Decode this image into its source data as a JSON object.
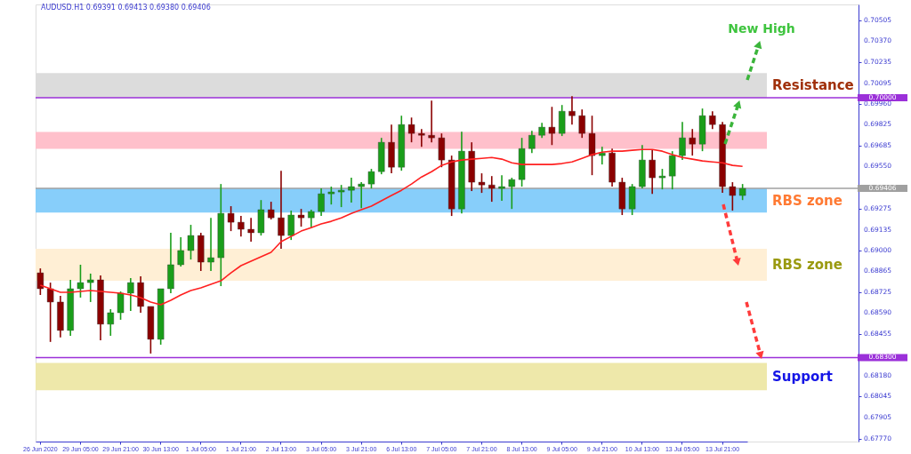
{
  "chart_data": {
    "type": "candlestick",
    "title": "AUDUSD.H1  0.69391 0.69413 0.69380 0.69406",
    "annotations": [
      "New High"
    ],
    "categories": [
      "26 Jun 2020",
      null,
      null,
      null,
      "29 Jun 05:00",
      null,
      null,
      null,
      "29 Jun 21:00",
      null,
      null,
      null,
      "30 Jun 13:00",
      null,
      null,
      null,
      "1 Jul 05:00",
      null,
      null,
      null,
      "1 Jul 21:00",
      null,
      null,
      null,
      "2 Jul 13:00",
      null,
      null,
      null,
      "3 Jul 05:00",
      null,
      null,
      null,
      "3 Jul 21:00",
      null,
      null,
      null,
      "6 Jul 13:00",
      null,
      null,
      null,
      "7 Jul 05:00",
      null,
      null,
      null,
      "7 Jul 21:00",
      null,
      null,
      null,
      "8 Jul 13:00",
      null,
      null,
      null,
      "9 Jul 05:00",
      null,
      null,
      null,
      "9 Jul 21:00",
      null,
      null,
      null,
      "10 Jul 13:00",
      null,
      null,
      null,
      "13 Jul 05:00",
      null,
      null,
      null,
      "13 Jul 21:00",
      null,
      null
    ],
    "ohlc": [
      [
        0.68854,
        0.68883,
        0.68709,
        0.6875
      ],
      [
        0.6875,
        0.6879,
        0.68402,
        0.68663
      ],
      [
        0.68663,
        0.68703,
        0.68431,
        0.68477
      ],
      [
        0.68477,
        0.68808,
        0.68442,
        0.6875
      ],
      [
        0.6875,
        0.68907,
        0.68692,
        0.6879
      ],
      [
        0.6879,
        0.68849,
        0.68663,
        0.68808
      ],
      [
        0.68808,
        0.68837,
        0.68413,
        0.68518
      ],
      [
        0.68518,
        0.68616,
        0.68442,
        0.68593
      ],
      [
        0.68593,
        0.68732,
        0.68547,
        0.68721
      ],
      [
        0.68721,
        0.6882,
        0.68605,
        0.6879
      ],
      [
        0.6879,
        0.68831,
        0.68593,
        0.68634
      ],
      [
        0.68634,
        0.68634,
        0.68326,
        0.68419
      ],
      [
        0.68419,
        0.6875,
        0.68384,
        0.6875
      ],
      [
        0.6875,
        0.69116,
        0.68721,
        0.68907
      ],
      [
        0.68907,
        0.69087,
        0.68895,
        0.69
      ],
      [
        0.69,
        0.69168,
        0.68941,
        0.69098
      ],
      [
        0.69098,
        0.69116,
        0.68866,
        0.68924
      ],
      [
        0.68924,
        0.69214,
        0.68866,
        0.68953
      ],
      [
        0.68953,
        0.69435,
        0.68767,
        0.69243
      ],
      [
        0.69243,
        0.6929,
        0.69127,
        0.69185
      ],
      [
        0.69185,
        0.69226,
        0.69092,
        0.69139
      ],
      [
        0.69139,
        0.69214,
        0.69058,
        0.69116
      ],
      [
        0.69116,
        0.6933,
        0.69098,
        0.69267
      ],
      [
        0.69267,
        0.69319,
        0.69203,
        0.69214
      ],
      [
        0.69214,
        0.69522,
        0.69011,
        0.69098
      ],
      [
        0.69098,
        0.69261,
        0.69069,
        0.69232
      ],
      [
        0.69232,
        0.69272,
        0.69156,
        0.69214
      ],
      [
        0.69214,
        0.69267,
        0.6915,
        0.69255
      ],
      [
        0.69255,
        0.69406,
        0.69226,
        0.69371
      ],
      [
        0.69371,
        0.69418,
        0.69301,
        0.69383
      ],
      [
        0.69383,
        0.69429,
        0.69284,
        0.69394
      ],
      [
        0.69394,
        0.69476,
        0.69313,
        0.69418
      ],
      [
        0.69418,
        0.69447,
        0.69278,
        0.69435
      ],
      [
        0.69435,
        0.69534,
        0.69406,
        0.69516
      ],
      [
        0.69516,
        0.69737,
        0.69499,
        0.69708
      ],
      [
        0.69708,
        0.69824,
        0.69505,
        0.69545
      ],
      [
        0.69545,
        0.69882,
        0.69522,
        0.69824
      ],
      [
        0.69824,
        0.6987,
        0.69708,
        0.69766
      ],
      [
        0.69766,
        0.69795,
        0.69679,
        0.69754
      ],
      [
        0.69754,
        0.69981,
        0.69708,
        0.69737
      ],
      [
        0.69737,
        0.69766,
        0.69545,
        0.69592
      ],
      [
        0.69592,
        0.69621,
        0.69226,
        0.69272
      ],
      [
        0.69272,
        0.69778,
        0.69243,
        0.6965
      ],
      [
        0.6965,
        0.69708,
        0.69389,
        0.69447
      ],
      [
        0.69447,
        0.69505,
        0.69377,
        0.69429
      ],
      [
        0.69429,
        0.69487,
        0.69319,
        0.69406
      ],
      [
        0.69406,
        0.69493,
        0.69325,
        0.69418
      ],
      [
        0.69418,
        0.69476,
        0.69272,
        0.69464
      ],
      [
        0.69464,
        0.69737,
        0.69418,
        0.69667
      ],
      [
        0.69667,
        0.69783,
        0.69638,
        0.69754
      ],
      [
        0.69754,
        0.69836,
        0.69737,
        0.69807
      ],
      [
        0.69807,
        0.6994,
        0.6969,
        0.69766
      ],
      [
        0.69766,
        0.69952,
        0.69749,
        0.69911
      ],
      [
        0.69911,
        0.7001,
        0.69824,
        0.69882
      ],
      [
        0.69882,
        0.69923,
        0.69737,
        0.69766
      ],
      [
        0.69766,
        0.69882,
        0.69493,
        0.69621
      ],
      [
        0.69621,
        0.69679,
        0.69563,
        0.69638
      ],
      [
        0.69638,
        0.69667,
        0.69418,
        0.69447
      ],
      [
        0.69447,
        0.69476,
        0.69232,
        0.69272
      ],
      [
        0.69272,
        0.69435,
        0.69232,
        0.69418
      ],
      [
        0.69418,
        0.6969,
        0.69406,
        0.69592
      ],
      [
        0.69592,
        0.69661,
        0.69371,
        0.69476
      ],
      [
        0.69476,
        0.69534,
        0.694,
        0.69487
      ],
      [
        0.69487,
        0.6965,
        0.694,
        0.69621
      ],
      [
        0.69621,
        0.69841,
        0.69592,
        0.69737
      ],
      [
        0.69737,
        0.69795,
        0.69621,
        0.69696
      ],
      [
        0.69696,
        0.69929,
        0.6965,
        0.69882
      ],
      [
        0.69882,
        0.69911,
        0.69795,
        0.69824
      ],
      [
        0.69824,
        0.69841,
        0.69377,
        0.69418
      ],
      [
        0.69418,
        0.69447,
        0.69261,
        0.6936
      ],
      [
        0.6936,
        0.69435,
        0.6933,
        0.69406
      ]
    ],
    "colors": [
      "#8b0000",
      "#8b0000",
      "#8b0000",
      "#1a9e1a",
      "#1a9e1a",
      "#1a9e1a",
      "#8b0000",
      "#1a9e1a",
      "#1a9e1a",
      "#1a9e1a",
      "#8b0000",
      "#8b0000",
      "#1a9e1a",
      "#1a9e1a",
      "#1a9e1a",
      "#1a9e1a",
      "#8b0000",
      "#1a9e1a",
      "#1a9e1a",
      "#8b0000",
      "#8b0000",
      "#8b0000",
      "#1a9e1a",
      "#8b0000",
      "#8b0000",
      "#1a9e1a",
      "#8b0000",
      "#1a9e1a",
      "#1a9e1a",
      "#1a9e1a",
      "#1a9e1a",
      "#1a9e1a",
      "#1a9e1a",
      "#1a9e1a",
      "#1a9e1a",
      "#8b0000",
      "#1a9e1a",
      "#8b0000",
      "#8b0000",
      "#8b0000",
      "#8b0000",
      "#8b0000",
      "#1a9e1a",
      "#8b0000",
      "#8b0000",
      "#8b0000",
      "#1a9e1a",
      "#1a9e1a",
      "#1a9e1a",
      "#1a9e1a",
      "#1a9e1a",
      "#8b0000",
      "#1a9e1a",
      "#8b0000",
      "#8b0000",
      "#8b0000",
      "#1a9e1a",
      "#8b0000",
      "#8b0000",
      "#1a9e1a",
      "#1a9e1a",
      "#8b0000",
      "#1a9e1a",
      "#1a9e1a",
      "#1a9e1a",
      "#8b0000",
      "#1a9e1a",
      "#8b0000",
      "#8b0000",
      "#8b0000",
      "#1a9e1a"
    ],
    "series": [
      {
        "type": "line",
        "color": "#ff2020",
        "values": [
          0.68773,
          0.6875,
          0.68727,
          0.68727,
          0.68732,
          0.68738,
          0.68732,
          0.68727,
          0.68721,
          0.68709,
          0.68692,
          0.68663,
          0.68645,
          0.68674,
          0.68709,
          0.68738,
          0.68756,
          0.68779,
          0.68802,
          0.68854,
          0.68901,
          0.6893,
          0.68959,
          0.68988,
          0.69058,
          0.69092,
          0.69127,
          0.6915,
          0.69174,
          0.69191,
          0.69214,
          0.69243,
          0.69267,
          0.6929,
          0.69325,
          0.6936,
          0.69394,
          0.69435,
          0.69481,
          0.69516,
          0.69557,
          0.6958,
          0.69592,
          0.69598,
          0.69603,
          0.69609,
          0.69598,
          0.69574,
          0.69563,
          0.69563,
          0.69563,
          0.69563,
          0.69569,
          0.6958,
          0.69603,
          0.69627,
          0.69644,
          0.6965,
          0.6965,
          0.69656,
          0.69661,
          0.69661,
          0.6965,
          0.69627,
          0.69609,
          0.69598,
          0.69586,
          0.6958,
          0.69574,
          0.69557,
          0.69551
        ]
      }
    ],
    "ylim": [
      0.6775,
      0.7061
    ],
    "yticks": [
      {
        "value": 0.70505,
        "label": "0.70505"
      },
      {
        "value": 0.7037,
        "label": "0.70370"
      },
      {
        "value": 0.70235,
        "label": "0.70235"
      },
      {
        "value": 0.70095,
        "label": "0.70095"
      },
      {
        "value": 0.6996,
        "label": "0.69960"
      },
      {
        "value": 0.69825,
        "label": "0.69825"
      },
      {
        "value": 0.69685,
        "label": "0.69685"
      },
      {
        "value": 0.6955,
        "label": "0.69550"
      },
      {
        "value": 0.69275,
        "label": "0.69275"
      },
      {
        "value": 0.69135,
        "label": "0.69135"
      },
      {
        "value": 0.69,
        "label": "0.69000"
      },
      {
        "value": 0.68865,
        "label": "0.68865"
      },
      {
        "value": 0.68725,
        "label": "0.68725"
      },
      {
        "value": 0.6859,
        "label": "0.68590"
      },
      {
        "value": 0.68455,
        "label": "0.68455"
      },
      {
        "value": 0.6818,
        "label": "0.68180"
      },
      {
        "value": 0.68045,
        "label": "0.68045"
      },
      {
        "value": 0.67905,
        "label": "0.67905"
      },
      {
        "value": 0.6777,
        "label": "0.67770"
      }
    ],
    "ref_lines": [
      {
        "axis": "y",
        "value": 0.7,
        "label": "0.70000",
        "color": "#9b30d9"
      },
      {
        "axis": "y",
        "value": 0.69406,
        "label": "0.69406",
        "color": "#a0a0a0"
      },
      {
        "axis": "y",
        "value": 0.683,
        "label": "0.68300",
        "color": "#9b30d9"
      }
    ],
    "bands": [
      {
        "axis": "y",
        "from": 0.7,
        "to": 0.70161,
        "label": "Resistance",
        "color": "#dcdcdc"
      },
      {
        "axis": "y",
        "from": 0.69666,
        "to": 0.69776,
        "label": null,
        "color": "#ffc0cb"
      },
      {
        "axis": "y",
        "from": 0.69249,
        "to": 0.69406,
        "label": "RBS zone",
        "color": "#87cefa"
      },
      {
        "axis": "y",
        "from": 0.68802,
        "to": 0.69011,
        "label": "RBS zone",
        "color": "#ffefd5"
      },
      {
        "axis": "y",
        "from": 0.68085,
        "to": 0.68265,
        "label": "Support",
        "color": "#eee8aa"
      }
    ]
  }
}
